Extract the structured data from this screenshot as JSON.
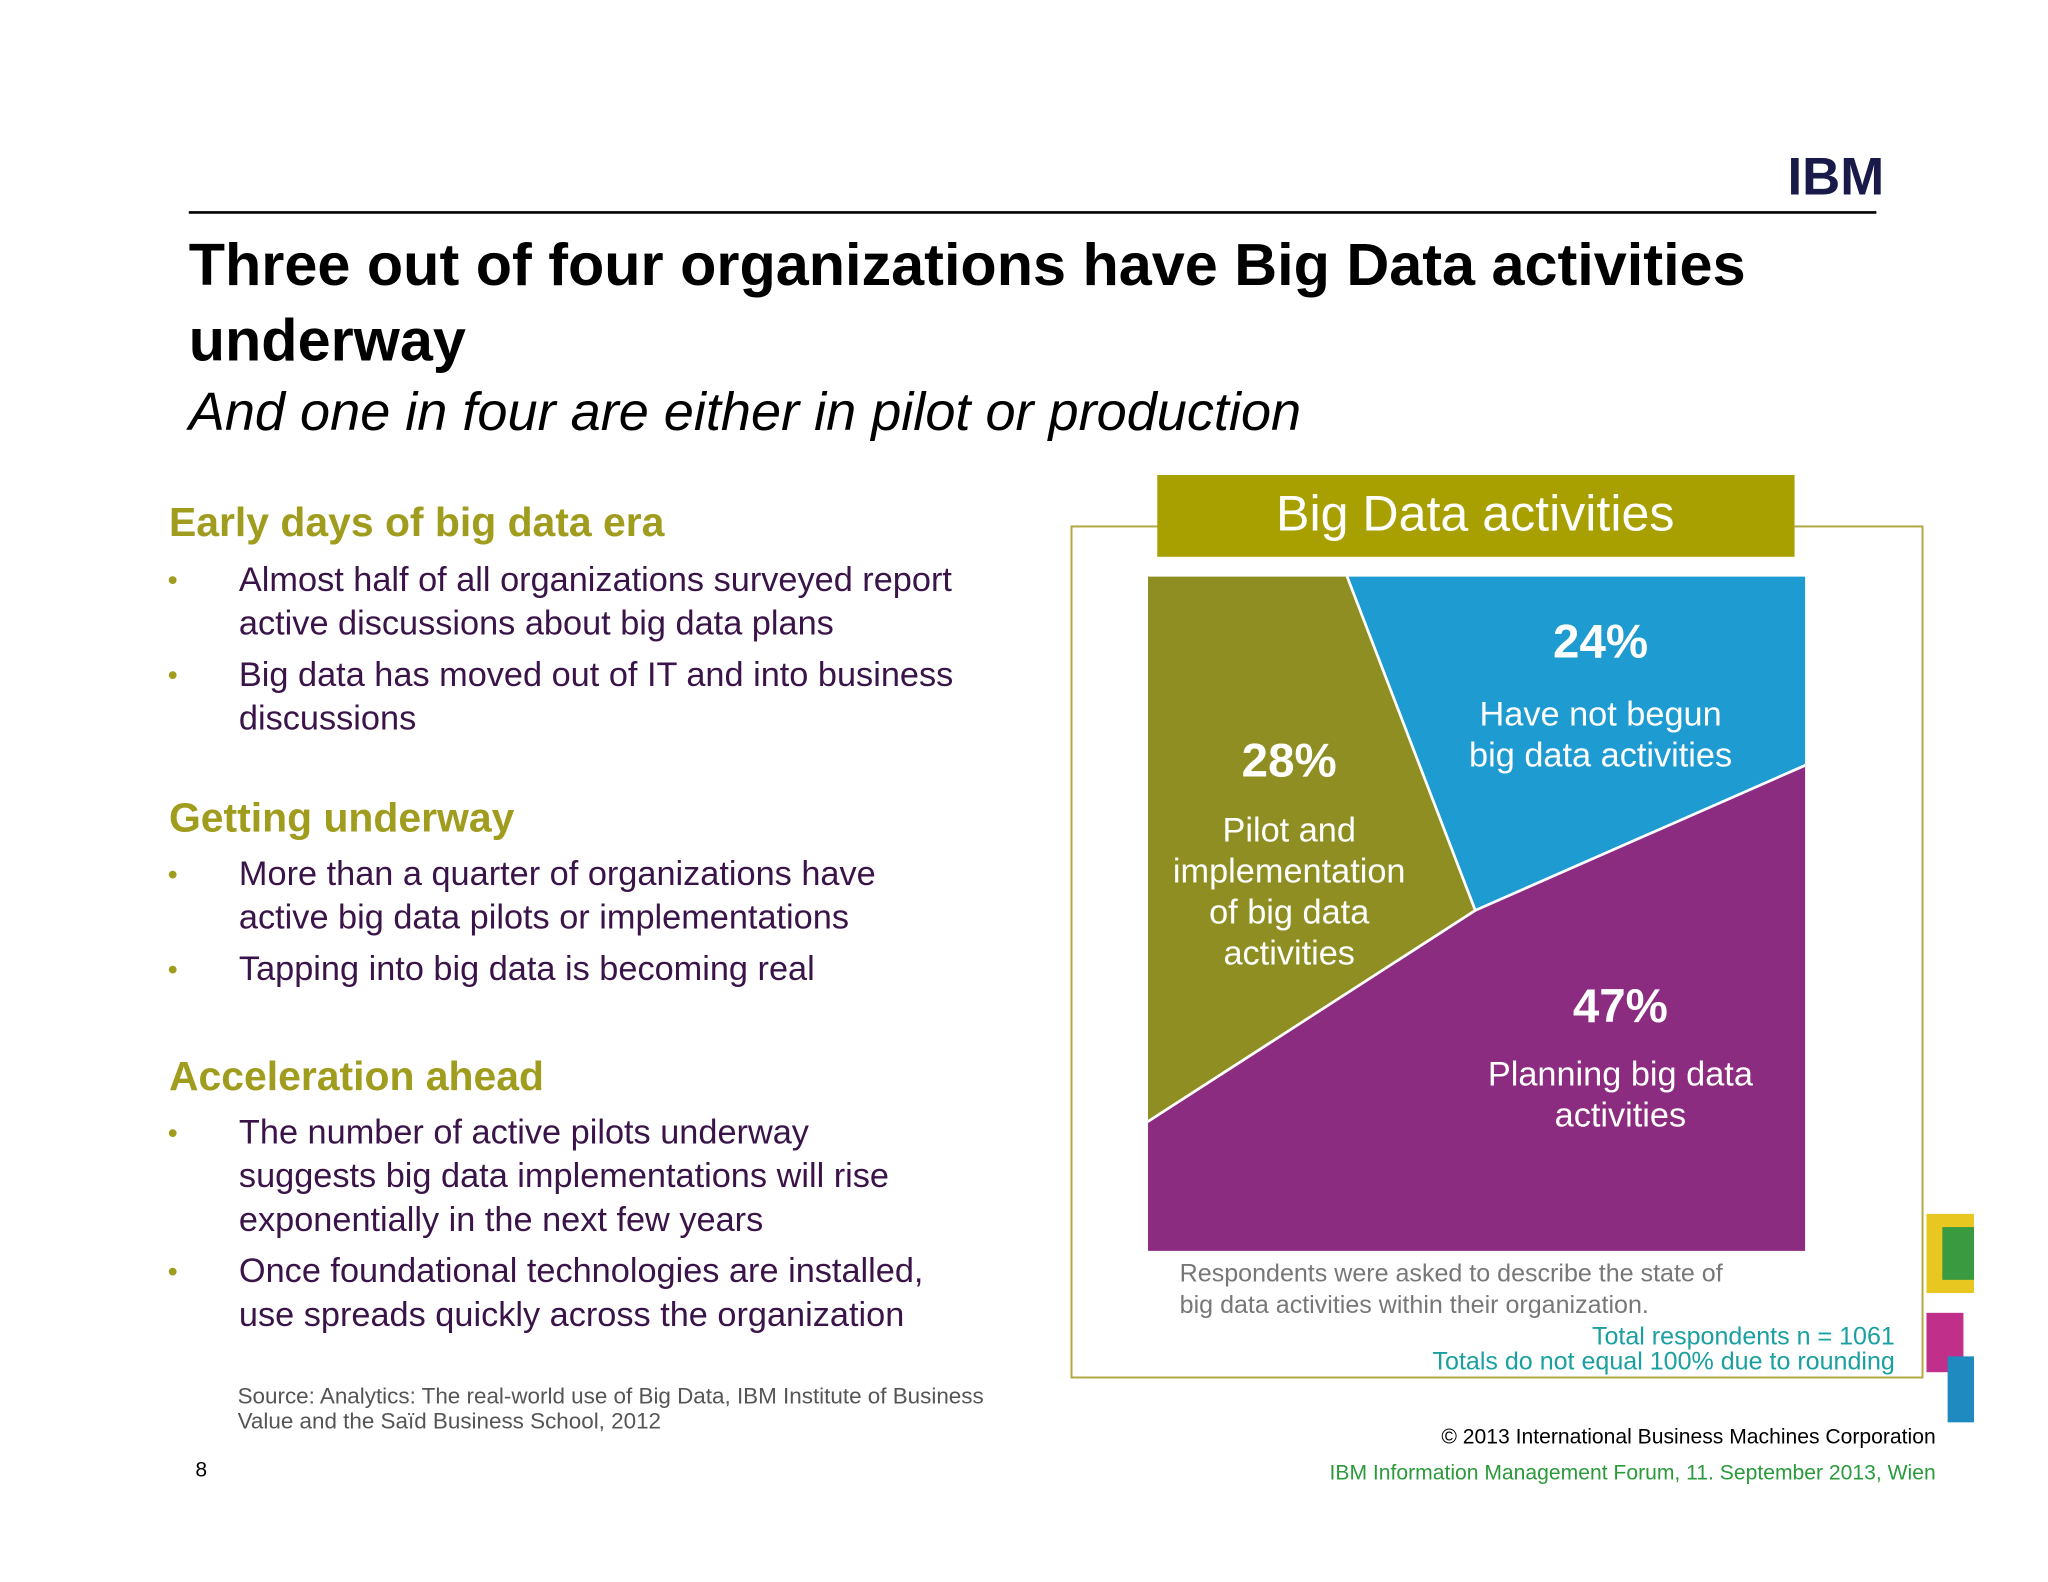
{
  "slide": {
    "logo": "IBM",
    "title": "Three out of four organizations have Big Data activities\nunderway",
    "subtitle": "And one in four are either in pilot or production",
    "sections": [
      {
        "heading": "Early days of big data era",
        "bullets": [
          "Almost half of all organizations surveyed report\nactive discussions about big data plans",
          "Big data has moved out of IT and into business\ndiscussions"
        ]
      },
      {
        "heading": "Getting underway",
        "bullets": [
          "More than a quarter of organizations have\nactive big data pilots or implementations",
          "Tapping into big data is becoming real"
        ]
      },
      {
        "heading": "Acceleration ahead",
        "bullets": [
          "The number of active pilots underway\nsuggests big data implementations will rise\nexponentially in the next few years",
          "Once foundational technologies are installed,\nuse spreads quickly across the organization"
        ]
      }
    ],
    "source": "Source: Analytics: The real-world use of Big Data, IBM Institute of Business\nValue and the Saïd Business School, 2012",
    "page_number": "8",
    "note": "Respondents were asked to describe the state of\nbig data activities within their organization.",
    "respondents": "Total respondents n = 1061",
    "rounding_note": "Totals do not equal 100% due to rounding",
    "copyright": "© 2013 International Business Machines Corporation",
    "event": "IBM Information Management Forum, 11. September 2013, Wien"
  },
  "chart_data": {
    "type": "pie",
    "title": "Big Data activities",
    "categories": [
      "Have not begun\nbig data activities",
      "Planning big data\nactivities",
      "Pilot and\nimplementation\nof big data\nactivities"
    ],
    "values": [
      24,
      47,
      28
    ],
    "value_labels": [
      "24%",
      "47%",
      "28%"
    ],
    "colors": [
      "#1e9bd0",
      "#8c2c80",
      "#8e8e22"
    ]
  }
}
